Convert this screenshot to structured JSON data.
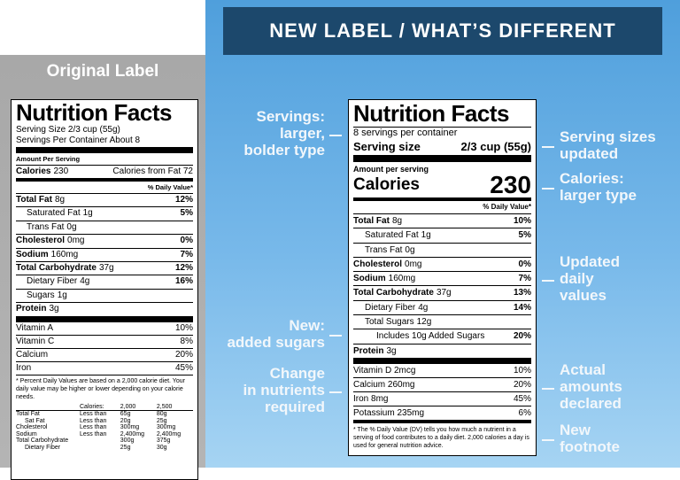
{
  "left_panel": {
    "title": "Original Label",
    "label": {
      "title": "Nutrition Facts",
      "serving_size": "Serving Size 2/3 cup (55g)",
      "servings_per_container": "Servings Per Container About 8",
      "amount_per_serving": "Amount Per Serving",
      "calories_label": "Calories",
      "calories_value": "230",
      "calories_from_fat": "Calories from Fat 72",
      "daily_value_header": "% Daily Value*",
      "rows": [
        {
          "name": "Total Fat",
          "amount": "8g",
          "dv": "12%",
          "bold": true,
          "indent": 0
        },
        {
          "name": "Saturated Fat",
          "amount": "1g",
          "dv": "5%",
          "bold": false,
          "indent": 1
        },
        {
          "name": "Trans Fat",
          "amount": "0g",
          "dv": "",
          "bold": false,
          "indent": 1
        },
        {
          "name": "Cholesterol",
          "amount": "0mg",
          "dv": "0%",
          "bold": true,
          "indent": 0
        },
        {
          "name": "Sodium",
          "amount": "160mg",
          "dv": "7%",
          "bold": true,
          "indent": 0
        },
        {
          "name": "Total Carbohydrate",
          "amount": "37g",
          "dv": "12%",
          "bold": true,
          "indent": 0
        },
        {
          "name": "Dietary Fiber",
          "amount": "4g",
          "dv": "16%",
          "bold": false,
          "indent": 1
        },
        {
          "name": "Sugars",
          "amount": "1g",
          "dv": "",
          "bold": false,
          "indent": 1
        },
        {
          "name": "Protein",
          "amount": "3g",
          "dv": "",
          "bold": true,
          "indent": 0
        }
      ],
      "vitamins": [
        {
          "name": "Vitamin A",
          "dv": "10%"
        },
        {
          "name": "Vitamin C",
          "dv": "8%"
        },
        {
          "name": "Calcium",
          "dv": "20%"
        },
        {
          "name": "Iron",
          "dv": "45%"
        }
      ],
      "footnote": "* Percent Daily Values are based on a 2,000 calorie diet. Your daily value may be higher or lower depending on your calorie needs.",
      "reference_table": [
        [
          "",
          "Calories:",
          "2,000",
          "2,500"
        ],
        [
          "Total Fat",
          "Less than",
          "65g",
          "80g"
        ],
        [
          "Sat Fat",
          "Less than",
          "20g",
          "25g"
        ],
        [
          "Cholesterol",
          "Less than",
          "300mg",
          "300mg"
        ],
        [
          "Sodium",
          "Less than",
          "2,400mg",
          "2,400mg"
        ],
        [
          "Total Carbohydrate",
          "",
          "300g",
          "375g"
        ],
        [
          "Dietary Fiber",
          "",
          "25g",
          "30g"
        ]
      ]
    }
  },
  "banner": "NEW LABEL / WHAT’S DIFFERENT",
  "new_label": {
    "title": "Nutrition Facts",
    "servings_per_container": "8 servings per container",
    "serving_size_label": "Serving size",
    "serving_size_value": "2/3 cup (55g)",
    "amount_per_serving": "Amount per serving",
    "calories_label": "Calories",
    "calories_value": "230",
    "daily_value_header": "% Daily Value*",
    "rows": [
      {
        "name": "Total Fat",
        "amount": "8g",
        "dv": "10%",
        "bold": true,
        "indent": 0
      },
      {
        "name": "Saturated Fat",
        "amount": "1g",
        "dv": "5%",
        "bold": false,
        "indent": 1
      },
      {
        "name": "Trans Fat",
        "amount": "0g",
        "dv": "",
        "bold": false,
        "indent": 1
      },
      {
        "name": "Cholesterol",
        "amount": "0mg",
        "dv": "0%",
        "bold": true,
        "indent": 0
      },
      {
        "name": "Sodium",
        "amount": "160mg",
        "dv": "7%",
        "bold": true,
        "indent": 0
      },
      {
        "name": "Total Carbohydrate",
        "amount": "37g",
        "dv": "13%",
        "bold": true,
        "indent": 0
      },
      {
        "name": "Dietary Fiber",
        "amount": "4g",
        "dv": "14%",
        "bold": false,
        "indent": 1
      },
      {
        "name": "Total Sugars",
        "amount": "12g",
        "dv": "",
        "bold": false,
        "indent": 1
      },
      {
        "name": "Includes 10g Added Sugars",
        "amount": "",
        "dv": "20%",
        "bold": false,
        "indent": 2
      },
      {
        "name": "Protein",
        "amount": "3g",
        "dv": "",
        "bold": true,
        "indent": 0
      }
    ],
    "vitamins": [
      {
        "name": "Vitamin D 2mcg",
        "dv": "10%"
      },
      {
        "name": "Calcium 260mg",
        "dv": "20%"
      },
      {
        "name": "Iron 8mg",
        "dv": "45%"
      },
      {
        "name": "Potassium 235mg",
        "dv": "6%"
      }
    ],
    "footnote": "* The % Daily Value (DV) tells you how much a nutrient in a serving of food contributes to a daily diet. 2,000 calories a day is used for general nutrition advice."
  },
  "annotations_left": [
    [
      "Servings:",
      "larger,",
      "bolder type"
    ],
    [
      "New:",
      "added sugars"
    ],
    [
      "Change",
      "in nutrients",
      "required"
    ]
  ],
  "annotations_right": [
    [
      "Serving sizes",
      "updated"
    ],
    [
      "Calories:",
      "larger type"
    ],
    [
      "Updated",
      "daily",
      "values"
    ],
    [
      "Actual",
      "amounts",
      "declared"
    ],
    [
      "New",
      "footnote"
    ]
  ]
}
